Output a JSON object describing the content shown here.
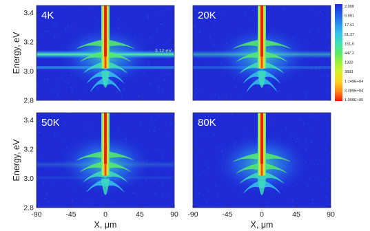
{
  "chart_data": {
    "type": "heatmap",
    "layout": "2x2 panels",
    "xlabel": "X, μm",
    "ylabel": "Energy, eV",
    "xticks": [
      -90,
      -45,
      0,
      45,
      90
    ],
    "yticks": [
      2.8,
      3.0,
      3.2,
      3.4
    ],
    "xlim": [
      -90,
      90
    ],
    "ylim": [
      2.8,
      3.45
    ],
    "colorscale": "log",
    "colorbar": {
      "ticks": [
        "2.000",
        "5.901",
        "17.41",
        "51.37",
        "151.6",
        "447.2",
        "1320",
        "3893",
        "1.149E+04",
        "3.389E+04",
        "1.000E+05"
      ],
      "colors": [
        "#1e2bd6",
        "#1f5ce8",
        "#2a8ff0",
        "#35c3ea",
        "#3fe0b6",
        "#56ec6a",
        "#9bf23c",
        "#d9f02a",
        "#ffd21f",
        "#ff8a14",
        "#f01a0a"
      ]
    },
    "panels": [
      {
        "label": "4K",
        "annotation": "3.12 eV",
        "horizontal_band_ev": 3.115,
        "band_strength": 1.0,
        "branch_energies_ev": [
          3.2,
          3.12,
          3.05,
          2.99,
          2.94
        ]
      },
      {
        "label": "20K",
        "annotation": "",
        "horizontal_band_ev": 3.115,
        "band_strength": 0.55,
        "branch_energies_ev": [
          3.2,
          3.12,
          3.05,
          2.99,
          2.94
        ]
      },
      {
        "label": "50K",
        "annotation": "",
        "horizontal_band_ev": 3.095,
        "band_strength": 0.2,
        "branch_energies_ev": [
          3.17,
          3.1,
          3.04,
          2.98
        ]
      },
      {
        "label": "80K",
        "annotation": "",
        "horizontal_band_ev": null,
        "band_strength": 0.0,
        "branch_energies_ev": [
          3.16,
          3.09,
          3.03,
          2.97
        ]
      }
    ]
  }
}
